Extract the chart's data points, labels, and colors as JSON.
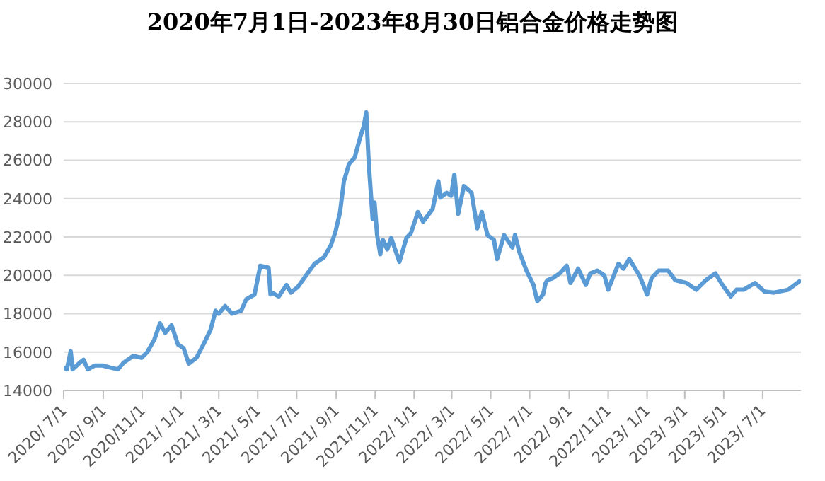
{
  "chart_data": {
    "type": "line",
    "title": "2020年7月1日-2023年8月30日铝合金价格走势图",
    "x": [
      "2020-07-01",
      "2020-07-06",
      "2020-07-12",
      "2020-07-15",
      "2020-07-28",
      "2020-08-01",
      "2020-08-08",
      "2020-08-19",
      "2020-08-31",
      "2020-09-11",
      "2020-09-24",
      "2020-10-03",
      "2020-10-18",
      "2020-10-31",
      "2020-11-09",
      "2020-11-20",
      "2020-11-29",
      "2020-12-07",
      "2020-12-17",
      "2020-12-27",
      "2021-01-05",
      "2021-01-13",
      "2021-01-25",
      "2021-02-05",
      "2021-02-16",
      "2021-02-24",
      "2021-03-01",
      "2021-03-11",
      "2021-03-22",
      "2021-04-05",
      "2021-04-13",
      "2021-04-26",
      "2021-05-05",
      "2021-05-18",
      "2021-05-21",
      "2021-05-23",
      "2021-06-03",
      "2021-06-15",
      "2021-06-22",
      "2021-07-03",
      "2021-07-18",
      "2021-07-29",
      "2021-08-13",
      "2021-08-24",
      "2021-08-31",
      "2021-09-07",
      "2021-09-13",
      "2021-09-21",
      "2021-09-30",
      "2021-10-09",
      "2021-10-14",
      "2021-10-18",
      "2021-10-22",
      "2021-10-28",
      "2021-10-31",
      "2021-11-04",
      "2021-11-09",
      "2021-11-13",
      "2021-11-20",
      "2021-11-26",
      "2021-12-09",
      "2021-12-20",
      "2021-12-27",
      "2022-01-07",
      "2022-01-15",
      "2022-01-30",
      "2022-02-08",
      "2022-02-11",
      "2022-02-21",
      "2022-02-28",
      "2022-03-05",
      "2022-03-11",
      "2022-03-20",
      "2022-04-01",
      "2022-04-10",
      "2022-04-17",
      "2022-04-26",
      "2022-05-06",
      "2022-05-11",
      "2022-05-22",
      "2022-06-04",
      "2022-06-08",
      "2022-06-15",
      "2022-06-26",
      "2022-07-07",
      "2022-07-13",
      "2022-07-22",
      "2022-07-26",
      "2022-07-29",
      "2022-08-06",
      "2022-08-17",
      "2022-08-28",
      "2022-09-03",
      "2022-09-15",
      "2022-09-27",
      "2022-10-04",
      "2022-10-15",
      "2022-10-26",
      "2022-11-01",
      "2022-11-17",
      "2022-11-25",
      "2022-12-04",
      "2022-12-20",
      "2023-01-01",
      "2023-01-08",
      "2023-01-19",
      "2023-02-03",
      "2023-02-14",
      "2023-03-04",
      "2023-03-19",
      "2023-04-03",
      "2023-04-18",
      "2023-04-29",
      "2023-05-12",
      "2023-05-21",
      "2023-06-01",
      "2023-06-19",
      "2023-07-04",
      "2023-07-19",
      "2023-08-10",
      "2023-08-30"
    ],
    "series": [
      {
        "color": "#5b9bd5",
        "values": [
          15200,
          15100,
          16050,
          15100,
          15500,
          15600,
          15100,
          15300,
          15300,
          15200,
          15100,
          15450,
          15800,
          15700,
          16000,
          16650,
          17500,
          17000,
          17400,
          16400,
          16200,
          15400,
          15700,
          16400,
          17150,
          18150,
          18000,
          18400,
          18000,
          18150,
          18750,
          19000,
          20500,
          20400,
          19000,
          19100,
          18900,
          19500,
          19100,
          19400,
          20100,
          20600,
          20950,
          21600,
          22300,
          23300,
          24900,
          25800,
          26150,
          27250,
          27750,
          28500,
          25800,
          22950,
          23800,
          22100,
          21100,
          21850,
          21350,
          21950,
          20700,
          21950,
          22200,
          23300,
          22800,
          23450,
          24900,
          24050,
          24300,
          24150,
          25250,
          23200,
          24650,
          24300,
          22450,
          23300,
          22100,
          21850,
          20850,
          22100,
          21450,
          22100,
          21200,
          20250,
          19500,
          18650,
          19000,
          19600,
          19750,
          19850,
          20100,
          20500,
          19600,
          20350,
          19500,
          20100,
          20250,
          20000,
          19250,
          20600,
          20350,
          20850,
          20000,
          19000,
          19850,
          20250,
          20250,
          19750,
          19600,
          19250,
          19750,
          20100,
          19500,
          18900,
          19250,
          19250,
          19600,
          19150,
          19100,
          19250,
          19750
        ]
      }
    ],
    "xlim": [
      "2020-07-01",
      "2023-08-30"
    ],
    "xticks": [
      {
        "value": "2020-07-01",
        "label": "2020/ 7/1"
      },
      {
        "value": "2020-09-01",
        "label": "2020/ 9/1"
      },
      {
        "value": "2020-11-01",
        "label": "2020/11/1"
      },
      {
        "value": "2021-01-01",
        "label": "2021/ 1/1"
      },
      {
        "value": "2021-03-01",
        "label": "2021/ 3/1"
      },
      {
        "value": "2021-05-01",
        "label": "2021/ 5/1"
      },
      {
        "value": "2021-07-01",
        "label": "2021/ 7/1"
      },
      {
        "value": "2021-09-01",
        "label": "2021/ 9/1"
      },
      {
        "value": "2021-11-01",
        "label": "2021/11/1"
      },
      {
        "value": "2022-01-01",
        "label": "2022/ 1/1"
      },
      {
        "value": "2022-03-01",
        "label": "2022/ 3/1"
      },
      {
        "value": "2022-05-01",
        "label": "2022/ 5/1"
      },
      {
        "value": "2022-07-01",
        "label": "2022/ 7/1"
      },
      {
        "value": "2022-09-01",
        "label": "2022/ 9/1"
      },
      {
        "value": "2022-11-01",
        "label": "2022/11/1"
      },
      {
        "value": "2023-01-01",
        "label": "2023/ 1/1"
      },
      {
        "value": "2023-03-01",
        "label": "2023/ 3/1"
      },
      {
        "value": "2023-05-01",
        "label": "2023/ 5/1"
      },
      {
        "value": "2023-07-01",
        "label": "2023/ 7/1"
      }
    ],
    "ylim": [
      14000,
      30000
    ],
    "yticks": [
      14000,
      16000,
      18000,
      20000,
      22000,
      24000,
      26000,
      28000,
      30000
    ],
    "grid": "y",
    "legend": false,
    "marker": "none",
    "line_style": "solid"
  }
}
